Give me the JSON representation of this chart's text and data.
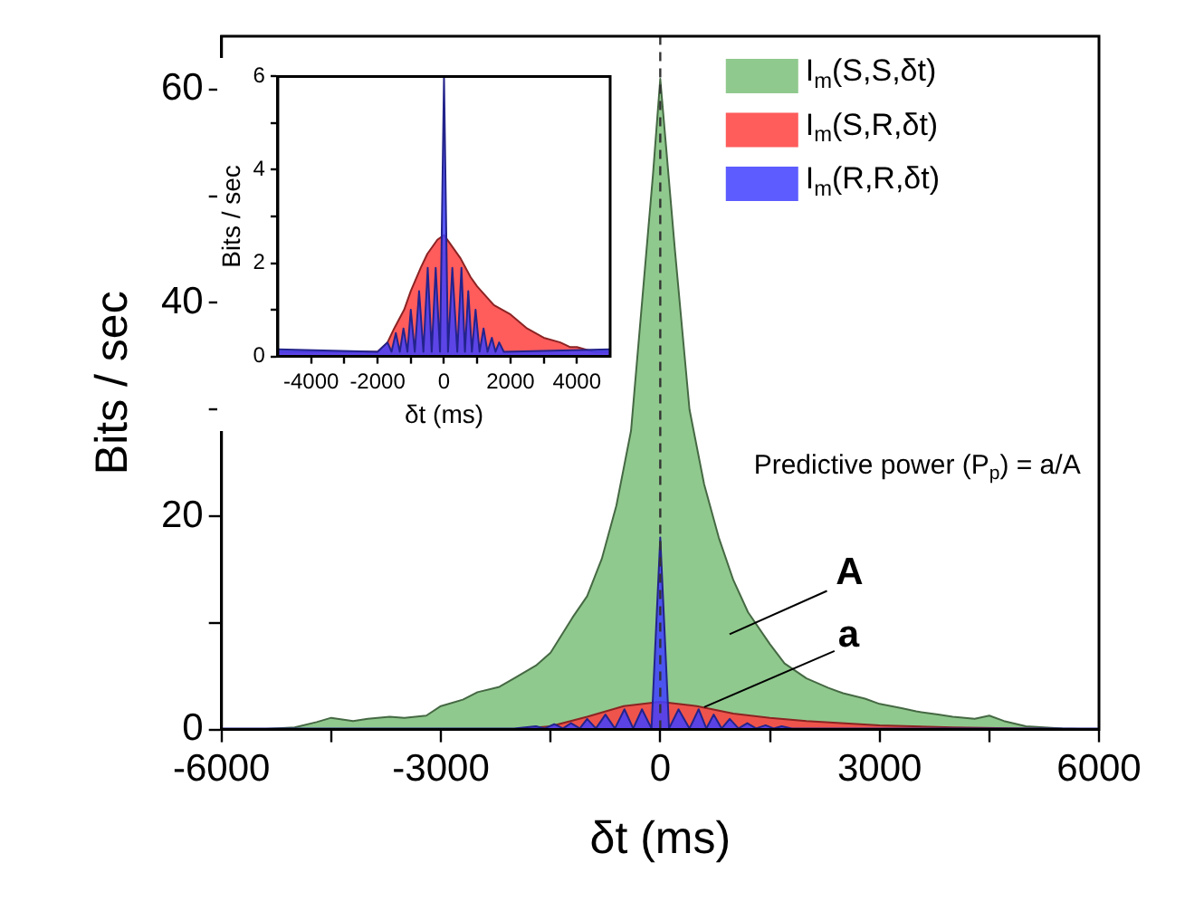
{
  "chart_data": [
    {
      "type": "area",
      "xlabel": "δt (ms)",
      "ylabel": "Bits / sec",
      "xlim": [
        -6000,
        6000
      ],
      "ylim": [
        0,
        65
      ],
      "xticks": [
        -6000,
        {
          "value": -4500,
          "label": null
        },
        -3000,
        {
          "value": -1500,
          "label": null
        },
        0,
        {
          "value": 1500,
          "label": null
        },
        3000,
        {
          "value": 4500,
          "label": null
        },
        6000
      ],
      "yticks": [
        0,
        {
          "value": 10,
          "label": null
        },
        20,
        {
          "value": 30,
          "label": null
        },
        40,
        {
          "value": 50,
          "label": null
        },
        60
      ],
      "legend": "top right",
      "series": [
        {
          "name": "I$_{m}$(S,S,δt)",
          "color": "#7dbf7a",
          "x": [
            -6000,
            -5500,
            -5000,
            -4700,
            -4500,
            -4200,
            -4000,
            -3700,
            -3500,
            -3200,
            -3000,
            -2700,
            -2500,
            -2200,
            -2000,
            -1700,
            -1500,
            -1200,
            -1000,
            -800,
            -600,
            -400,
            -200,
            -100,
            0,
            100,
            200,
            400,
            600,
            800,
            1000,
            1200,
            1500,
            1700,
            2000,
            2300,
            2500,
            2800,
            3000,
            3300,
            3500,
            3800,
            4000,
            4300,
            4500,
            4700,
            5000,
            5500,
            6000
          ],
          "values": [
            0,
            0,
            0.2,
            0.7,
            1.1,
            0.8,
            1.0,
            1.2,
            1.1,
            1.3,
            2.2,
            2.8,
            3.5,
            4.0,
            4.8,
            6.0,
            7.2,
            10.5,
            12.5,
            16,
            21,
            28,
            44,
            52,
            61,
            53,
            45,
            30,
            23,
            18,
            14,
            11,
            8,
            6.2,
            4.8,
            3.9,
            3.4,
            2.9,
            2.4,
            2.0,
            1.7,
            1.4,
            1.2,
            1.0,
            1.3,
            0.8,
            0.3,
            0.1,
            0
          ]
        },
        {
          "name": "I$_{m}$(S,R,δt)",
          "color": "#ff4040",
          "x": [
            -6000,
            -2000,
            -1500,
            -1000,
            -500,
            0,
            500,
            1000,
            1500,
            2000,
            3000,
            4000,
            5000,
            6000
          ],
          "values": [
            0,
            0,
            0.3,
            1.2,
            2.2,
            2.6,
            2.2,
            1.5,
            1.1,
            0.8,
            0.4,
            0.2,
            0.1,
            0
          ]
        },
        {
          "name": "I$_{m}$(R,R,δt)",
          "color": "#4040ff",
          "x": [
            -6000,
            -2000,
            -1700,
            -1580,
            -1450,
            -1330,
            -1220,
            -1100,
            -1000,
            -880,
            -750,
            -620,
            -490,
            -370,
            -250,
            -120,
            0,
            120,
            250,
            400,
            525,
            630,
            730,
            840,
            950,
            1070,
            1190,
            1310,
            1440,
            1550,
            1660,
            1800,
            6000
          ],
          "values": [
            0.1,
            0.1,
            0.3,
            0.1,
            0.5,
            0.1,
            0.6,
            0.1,
            1.0,
            0.1,
            1.4,
            0.1,
            1.9,
            0.1,
            1.9,
            0.1,
            18,
            0.1,
            1.9,
            0.1,
            1.9,
            0.1,
            1.4,
            0.1,
            1.0,
            0.1,
            0.6,
            0.1,
            0.4,
            0.1,
            0.3,
            0.1,
            0.1
          ]
        }
      ],
      "ref_lines": [
        {
          "axis": "x",
          "value": 0,
          "color": "#333333",
          "line_style": "dashed"
        }
      ],
      "annotations": [
        "A",
        {
          "text": "a",
          "x": 600,
          "y": 2.1
        },
        "Predictive power (P$_{p}$) = a/A"
      ]
    },
    {
      "type": "area",
      "xlabel": "δt (ms)",
      "ylabel": "Bits / sec",
      "xlim": [
        -5000,
        5000
      ],
      "ylim": [
        0,
        6
      ],
      "xticks": [
        -4000,
        {
          "value": -3000,
          "label": null
        },
        -2000,
        {
          "value": -1000,
          "label": null
        },
        0,
        {
          "value": 1000,
          "label": null
        },
        2000,
        {
          "value": 3000,
          "label": null
        },
        4000
      ],
      "yticks": [
        0,
        {
          "value": 1,
          "label": null
        },
        2,
        {
          "value": 3,
          "label": null
        },
        4,
        {
          "value": 5,
          "label": null
        },
        6
      ],
      "series": [
        {
          "color": "#ff4040",
          "x": [
            -5000,
            -2000,
            -1700,
            -1500,
            -1200,
            -1000,
            -700,
            -500,
            -200,
            0,
            200,
            500,
            800,
            1000,
            1500,
            2000,
            2500,
            3000,
            3500,
            3800,
            4000,
            4500,
            5000
          ],
          "values": [
            0.1,
            0.1,
            0.3,
            0.6,
            1.0,
            1.4,
            1.9,
            2.2,
            2.5,
            2.6,
            2.4,
            2.1,
            1.7,
            1.5,
            1.1,
            0.9,
            0.6,
            0.4,
            0.3,
            0.2,
            0.2,
            0.1,
            0.1
          ]
        },
        {
          "color": "#4040ff",
          "x": [
            -5000,
            -2000,
            -1700,
            -1580,
            -1450,
            -1330,
            -1220,
            -1100,
            -1000,
            -880,
            -750,
            -620,
            -490,
            -370,
            -250,
            -120,
            0,
            120,
            250,
            400,
            525,
            630,
            730,
            840,
            950,
            1070,
            1190,
            1310,
            1440,
            1550,
            1660,
            1800,
            5000
          ],
          "values": [
            0.15,
            0.1,
            0.3,
            0.1,
            0.5,
            0.1,
            0.6,
            0.1,
            1.0,
            0.1,
            1.4,
            0.1,
            1.9,
            0.1,
            1.9,
            0.1,
            6,
            0.1,
            1.9,
            0.1,
            1.9,
            0.1,
            1.4,
            0.1,
            1.0,
            0.1,
            0.6,
            0.1,
            0.4,
            0.1,
            0.3,
            0.1,
            0.15
          ]
        }
      ]
    }
  ]
}
